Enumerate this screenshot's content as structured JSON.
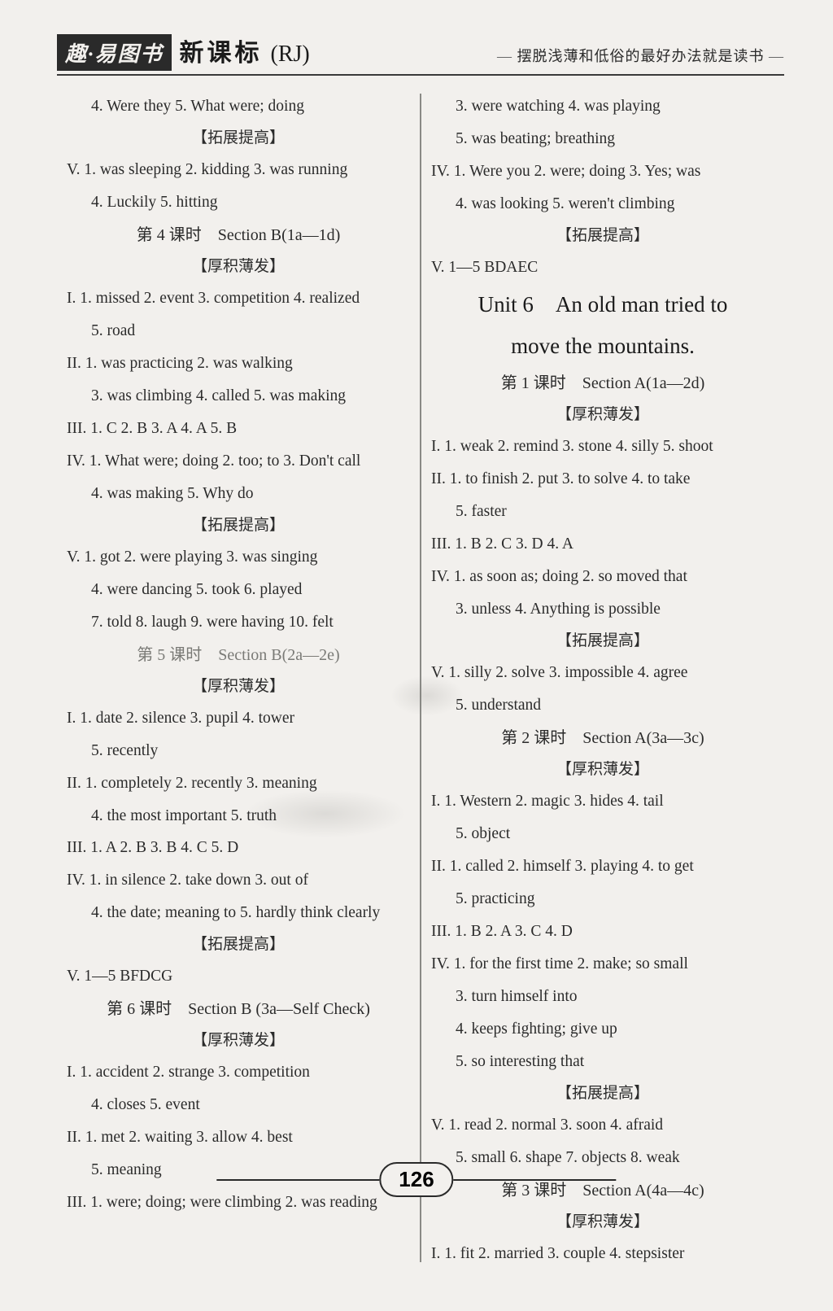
{
  "header": {
    "brand_box": "趣·易图书",
    "brand_suffix": "新课标",
    "brand_rj": "(RJ)",
    "quote": "摆脱浅薄和低俗的最好办法就是读书"
  },
  "page_number": "126",
  "left": [
    {
      "t": "line",
      "cls": "indent2",
      "v": "4. Were they   5. What were; doing"
    },
    {
      "t": "sec-sub",
      "v": "【拓展提高】"
    },
    {
      "t": "line",
      "v": "V. 1. was sleeping   2. kidding   3. was running"
    },
    {
      "t": "line",
      "cls": "indent2",
      "v": "4. Luckily   5. hitting"
    },
    {
      "t": "sec-title",
      "v": "第 4 课时　Section B(1a—1d)"
    },
    {
      "t": "sec-sub",
      "v": "【厚积薄发】"
    },
    {
      "t": "line",
      "v": "I. 1. missed   2. event   3. competition   4. realized"
    },
    {
      "t": "line",
      "cls": "indent2",
      "v": "5. road"
    },
    {
      "t": "line",
      "v": "II. 1. was practicing   2. was walking"
    },
    {
      "t": "line",
      "cls": "indent2",
      "v": "3. was climbing   4. called   5. was making"
    },
    {
      "t": "line",
      "v": "III. 1. C   2. B   3. A   4. A   5. B"
    },
    {
      "t": "line",
      "v": "IV. 1. What were; doing   2. too; to   3. Don't call"
    },
    {
      "t": "line",
      "cls": "indent2",
      "v": "4. was making   5. Why do"
    },
    {
      "t": "sec-sub",
      "v": "【拓展提高】"
    },
    {
      "t": "line",
      "v": "V. 1. got   2. were playing   3. was singing"
    },
    {
      "t": "line",
      "cls": "indent2",
      "v": "4. were dancing   5. took   6. played"
    },
    {
      "t": "line",
      "cls": "indent2",
      "v": "7. told   8. laugh   9. were having   10. felt"
    },
    {
      "t": "sec-title",
      "cls": "faded",
      "v": "第 5 课时　Section B(2a—2e)"
    },
    {
      "t": "sec-sub",
      "v": "【厚积薄发】"
    },
    {
      "t": "line",
      "v": "I. 1. date   2. silence   3. pupil   4. tower"
    },
    {
      "t": "line",
      "cls": "indent2",
      "v": "5. recently"
    },
    {
      "t": "line",
      "v": "II. 1. completely   2. recently   3. meaning"
    },
    {
      "t": "line",
      "cls": "indent2",
      "v": "4. the most important   5. truth"
    },
    {
      "t": "line",
      "v": "III. 1. A   2. B   3. B   4. C   5. D"
    },
    {
      "t": "line",
      "v": "IV. 1. in silence   2. take down   3. out of"
    },
    {
      "t": "line",
      "cls": "indent2",
      "v": "4. the date; meaning to   5. hardly think clearly"
    },
    {
      "t": "sec-sub",
      "v": "【拓展提高】"
    },
    {
      "t": "line",
      "v": "V. 1—5 BFDCG"
    },
    {
      "t": "sec-title",
      "v": "第 6 课时　Section B (3a—Self Check)"
    },
    {
      "t": "sec-sub",
      "v": "【厚积薄发】"
    },
    {
      "t": "line",
      "v": "I. 1. accident   2. strange   3. competition"
    },
    {
      "t": "line",
      "cls": "indent2",
      "v": "4. closes   5. event"
    },
    {
      "t": "line",
      "v": "II. 1. met   2. waiting   3. allow   4. best"
    },
    {
      "t": "line",
      "cls": "indent2",
      "v": "5. meaning"
    },
    {
      "t": "line",
      "v": "III. 1. were; doing; were climbing   2. was reading"
    }
  ],
  "right": [
    {
      "t": "line",
      "cls": "indent2",
      "v": "3. were watching   4. was playing"
    },
    {
      "t": "line",
      "cls": "indent2",
      "v": "5. was beating; breathing"
    },
    {
      "t": "line",
      "v": "IV. 1. Were you   2. were; doing   3. Yes; was"
    },
    {
      "t": "line",
      "cls": "indent2",
      "v": "4. was looking   5. weren't climbing"
    },
    {
      "t": "sec-sub",
      "v": "【拓展提高】"
    },
    {
      "t": "line",
      "v": "V. 1—5 BDAEC"
    },
    {
      "t": "unit-title",
      "v": "Unit 6　An old man tried to"
    },
    {
      "t": "unit-title",
      "v": "move the mountains."
    },
    {
      "t": "sec-title",
      "v": "第 1 课时　Section A(1a—2d)"
    },
    {
      "t": "sec-sub",
      "v": "【厚积薄发】"
    },
    {
      "t": "line",
      "v": "I. 1. weak   2. remind   3. stone   4. silly   5. shoot"
    },
    {
      "t": "line",
      "v": "II. 1. to finish   2. put   3. to solve   4. to take"
    },
    {
      "t": "line",
      "cls": "indent2",
      "v": "5. faster"
    },
    {
      "t": "line",
      "v": "III. 1. B   2. C   3. D   4. A"
    },
    {
      "t": "line",
      "v": "IV. 1. as soon as; doing   2. so moved that"
    },
    {
      "t": "line",
      "cls": "indent2",
      "v": "3. unless   4. Anything is possible"
    },
    {
      "t": "sec-sub",
      "v": "【拓展提高】"
    },
    {
      "t": "line",
      "v": "V. 1. silly   2. solve   3. impossible   4. agree"
    },
    {
      "t": "line",
      "cls": "indent2",
      "v": "5. understand"
    },
    {
      "t": "sec-title",
      "v": "第 2 课时　Section A(3a—3c)"
    },
    {
      "t": "sec-sub",
      "v": "【厚积薄发】"
    },
    {
      "t": "line",
      "v": "I. 1. Western   2. magic   3. hides   4. tail"
    },
    {
      "t": "line",
      "cls": "indent2",
      "v": "5. object"
    },
    {
      "t": "line",
      "v": "II. 1. called   2. himself   3. playing   4. to get"
    },
    {
      "t": "line",
      "cls": "indent2",
      "v": "5. practicing"
    },
    {
      "t": "line",
      "v": "III. 1. B   2. A   3. C   4. D"
    },
    {
      "t": "line",
      "v": "IV. 1. for the first time   2. make; so small"
    },
    {
      "t": "line",
      "cls": "indent2",
      "v": "3. turn himself into"
    },
    {
      "t": "line",
      "cls": "indent2",
      "v": "4. keeps fighting; give up"
    },
    {
      "t": "line",
      "cls": "indent2",
      "v": "5. so interesting that"
    },
    {
      "t": "sec-sub",
      "v": "【拓展提高】"
    },
    {
      "t": "line",
      "v": "V. 1. read   2. normal   3. soon   4. afraid"
    },
    {
      "t": "line",
      "cls": "indent2",
      "v": "5. small   6. shape   7. objects   8. weak"
    },
    {
      "t": "sec-title",
      "v": "第 3 课时　Section A(4a—4c)"
    },
    {
      "t": "sec-sub",
      "v": "【厚积薄发】"
    },
    {
      "t": "line",
      "v": "I. 1. fit   2. married   3. couple   4. stepsister"
    }
  ]
}
